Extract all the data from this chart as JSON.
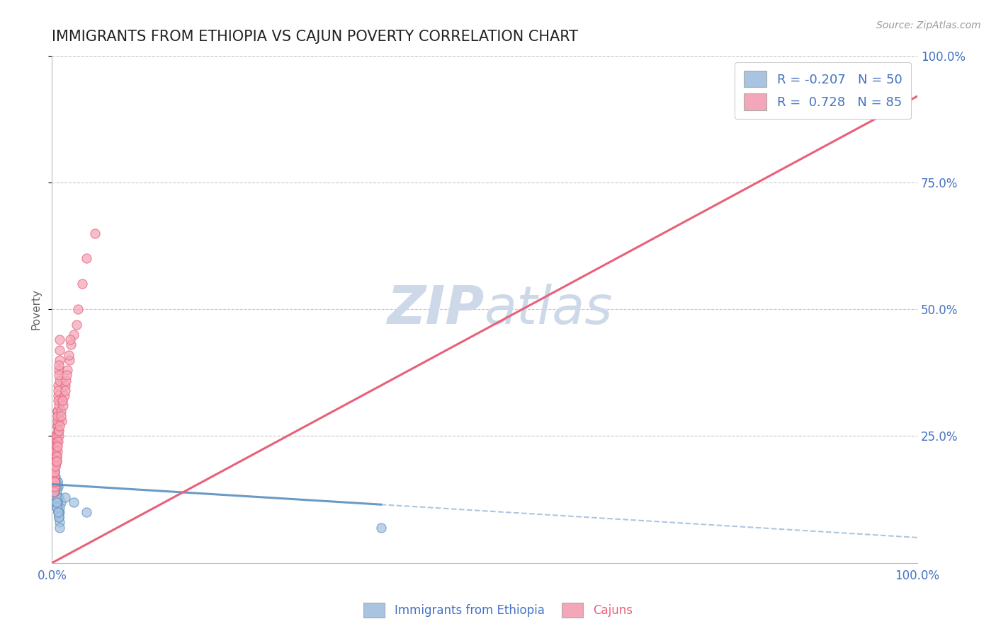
{
  "title": "IMMIGRANTS FROM ETHIOPIA VS CAJUN POVERTY CORRELATION CHART",
  "source_text": "Source: ZipAtlas.com",
  "ylabel": "Poverty",
  "xlim": [
    0,
    1
  ],
  "ylim": [
    0,
    1
  ],
  "R1": -0.207,
  "N1": 50,
  "R2": 0.728,
  "N2": 85,
  "color_blue": "#a8c4e0",
  "color_pink": "#f4a7b9",
  "line_blue": "#5a8fc0",
  "line_pink": "#e8607a",
  "title_color": "#222222",
  "legend_text_color": "#4472c4",
  "watermark_color": "#cdd9e8",
  "background_color": "#ffffff",
  "grid_color": "#c8c8c8",
  "tick_label_color": "#4472c4",
  "legend1_label": "Immigrants from Ethiopia",
  "legend2_label": "Cajuns",
  "blue_line_x0": 0.0,
  "blue_line_y0": 0.155,
  "blue_line_x1": 1.0,
  "blue_line_y1": 0.05,
  "blue_line_solid_x1": 0.38,
  "pink_line_x0": 0.0,
  "pink_line_y0": 0.0,
  "pink_line_x1": 1.0,
  "pink_line_y1": 0.92,
  "scatter_blue_x": [
    0.002,
    0.004,
    0.006,
    0.008,
    0.003,
    0.005,
    0.007,
    0.009,
    0.001,
    0.01,
    0.003,
    0.006,
    0.004,
    0.007,
    0.002,
    0.005,
    0.008,
    0.003,
    0.006,
    0.004,
    0.007,
    0.002,
    0.005,
    0.009,
    0.003,
    0.006,
    0.004,
    0.008,
    0.002,
    0.005,
    0.007,
    0.003,
    0.006,
    0.004,
    0.009,
    0.002,
    0.005,
    0.008,
    0.003,
    0.006,
    0.004,
    0.007,
    0.002,
    0.005,
    0.009,
    0.003,
    0.38,
    0.04,
    0.015,
    0.025
  ],
  "scatter_blue_y": [
    0.14,
    0.12,
    0.16,
    0.13,
    0.18,
    0.11,
    0.15,
    0.1,
    0.17,
    0.12,
    0.19,
    0.13,
    0.14,
    0.11,
    0.16,
    0.15,
    0.09,
    0.18,
    0.12,
    0.17,
    0.1,
    0.14,
    0.13,
    0.11,
    0.16,
    0.12,
    0.15,
    0.09,
    0.17,
    0.14,
    0.1,
    0.13,
    0.16,
    0.12,
    0.08,
    0.15,
    0.11,
    0.09,
    0.14,
    0.13,
    0.16,
    0.1,
    0.15,
    0.12,
    0.07,
    0.14,
    0.07,
    0.1,
    0.13,
    0.12
  ],
  "scatter_pink_x": [
    0.003,
    0.006,
    0.002,
    0.008,
    0.004,
    0.007,
    0.003,
    0.005,
    0.009,
    0.006,
    0.004,
    0.008,
    0.003,
    0.006,
    0.002,
    0.007,
    0.004,
    0.009,
    0.005,
    0.008,
    0.003,
    0.006,
    0.004,
    0.007,
    0.002,
    0.005,
    0.009,
    0.003,
    0.008,
    0.006,
    0.004,
    0.007,
    0.003,
    0.005,
    0.009,
    0.002,
    0.006,
    0.004,
    0.008,
    0.003,
    0.007,
    0.005,
    0.009,
    0.003,
    0.006,
    0.004,
    0.008,
    0.002,
    0.007,
    0.005,
    0.01,
    0.015,
    0.02,
    0.025,
    0.03,
    0.012,
    0.018,
    0.022,
    0.035,
    0.028,
    0.016,
    0.04,
    0.05,
    0.008,
    0.014,
    0.006,
    0.003,
    0.019,
    0.004,
    0.011,
    0.007,
    0.003,
    0.017,
    0.005,
    0.013,
    0.008,
    0.004,
    0.021,
    0.006,
    0.015,
    0.009,
    0.003,
    0.01,
    0.005,
    0.012
  ],
  "scatter_pink_y": [
    0.22,
    0.3,
    0.18,
    0.28,
    0.25,
    0.35,
    0.2,
    0.24,
    0.32,
    0.27,
    0.19,
    0.38,
    0.23,
    0.3,
    0.17,
    0.26,
    0.22,
    0.36,
    0.21,
    0.29,
    0.16,
    0.25,
    0.2,
    0.33,
    0.18,
    0.24,
    0.4,
    0.19,
    0.31,
    0.27,
    0.22,
    0.34,
    0.17,
    0.23,
    0.42,
    0.15,
    0.28,
    0.21,
    0.37,
    0.19,
    0.32,
    0.25,
    0.44,
    0.16,
    0.29,
    0.22,
    0.39,
    0.14,
    0.26,
    0.2,
    0.3,
    0.35,
    0.4,
    0.45,
    0.5,
    0.32,
    0.38,
    0.43,
    0.55,
    0.47,
    0.36,
    0.6,
    0.65,
    0.25,
    0.33,
    0.22,
    0.18,
    0.41,
    0.2,
    0.28,
    0.24,
    0.15,
    0.37,
    0.21,
    0.31,
    0.26,
    0.19,
    0.44,
    0.23,
    0.34,
    0.27,
    0.16,
    0.29,
    0.2,
    0.32
  ]
}
